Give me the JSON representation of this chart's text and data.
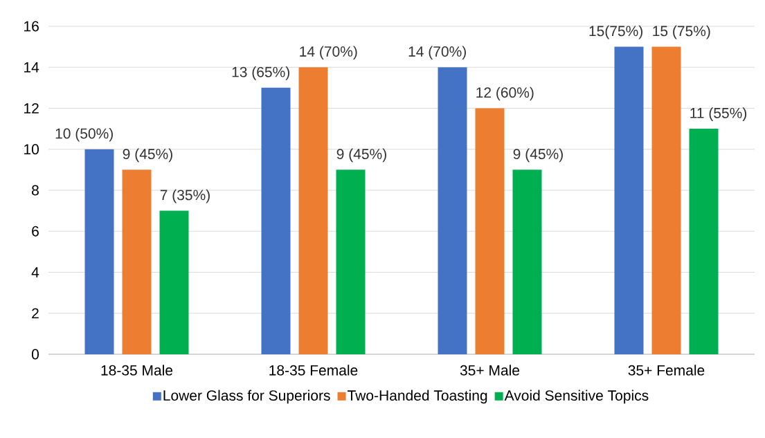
{
  "chart_data": {
    "type": "bar",
    "categories": [
      "18-35 Male",
      "18-35 Female",
      "35+ Male",
      "35+ Female"
    ],
    "series": [
      {
        "name": "Lower Glass for Superiors",
        "color": "#4472c4",
        "values": [
          10,
          13,
          14,
          15
        ],
        "value_labels": [
          "10 (50%)",
          "13 (65%)",
          "14 (70%)",
          "15(75%)"
        ]
      },
      {
        "name": "Two-Handed Toasting",
        "color": "#ed7d31",
        "values": [
          9,
          14,
          12,
          15
        ],
        "value_labels": [
          "9 (45%)",
          "14 (70%)",
          "12 (60%)",
          "15 (75%)"
        ]
      },
      {
        "name": "Avoid Sensitive Topics",
        "color": "#00b050",
        "values": [
          7,
          9,
          9,
          11
        ],
        "value_labels": [
          "7 (35%)",
          "9 (45%)",
          "9 (45%)",
          "11 (55%)"
        ]
      }
    ],
    "ylim": [
      0,
      16
    ],
    "yticks": [
      0,
      2,
      4,
      6,
      8,
      10,
      12,
      14,
      16
    ],
    "grid": "y",
    "legend": "bottom"
  }
}
